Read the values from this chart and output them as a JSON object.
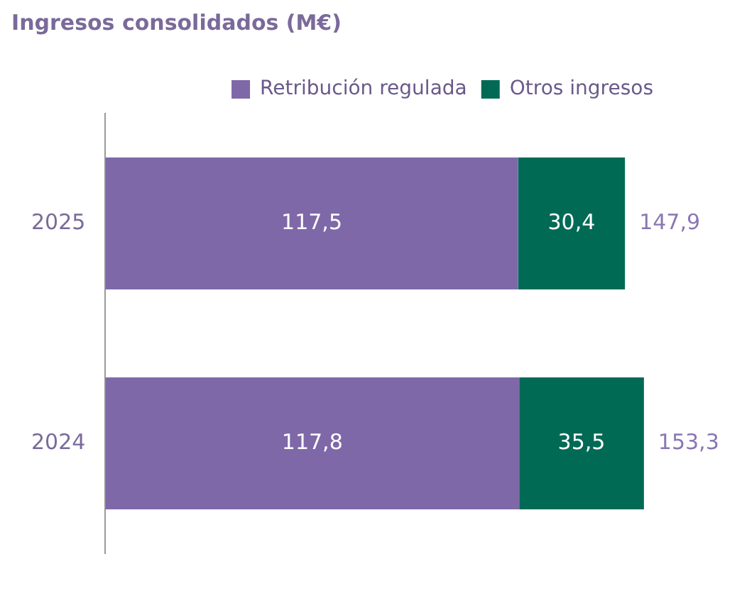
{
  "chart_data": {
    "type": "bar",
    "orientation": "horizontal",
    "stacked": true,
    "title": "Ingresos consolidados (M€)",
    "categories": [
      "2025",
      "2024"
    ],
    "series": [
      {
        "name": "Retribución regulada",
        "color": "#7e68a8",
        "values": [
          117.5,
          117.8
        ],
        "value_labels": [
          "117,5",
          "117,8"
        ]
      },
      {
        "name": "Otros ingresos",
        "color": "#006a55",
        "values": [
          30.4,
          35.5
        ],
        "value_labels": [
          "30,4",
          "35,5"
        ]
      }
    ],
    "totals": [
      "147,9",
      "153,3"
    ],
    "legend": "top right"
  }
}
